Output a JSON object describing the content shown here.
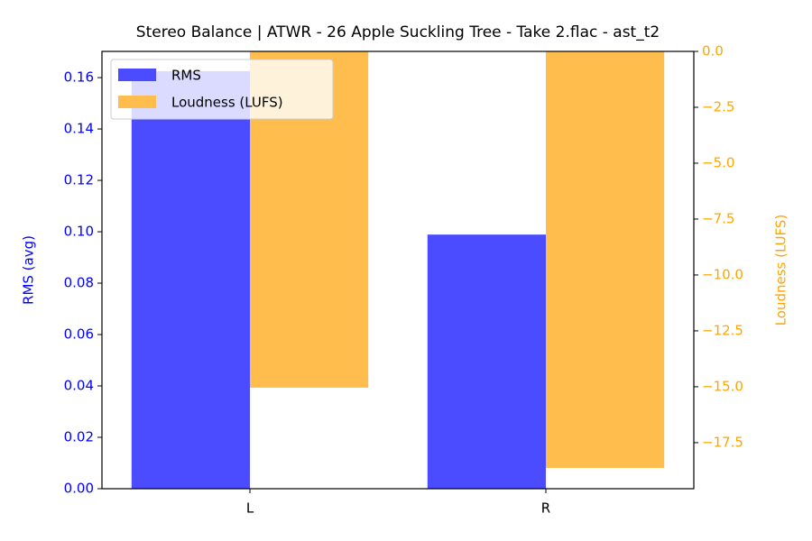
{
  "chart_data": {
    "type": "bar",
    "title": "Stereo Balance | ATWR - 26 Apple Suckling Tree - Take 2.flac - ast_t2",
    "categories": [
      "L",
      "R"
    ],
    "ylabel": "RMS (avg)",
    "y2label": "Loudness (LUFS)",
    "series": [
      {
        "name": "RMS",
        "color": "#4b4bff",
        "values": [
          0.1625,
          0.0989
        ]
      },
      {
        "name": "Loudness (LUFS)",
        "color": "#ffbd4d",
        "axis": "y2",
        "values": [
          -15.04,
          -18.63
        ]
      }
    ],
    "ylim": [
      0,
      0.1702
    ],
    "yticks": [
      {
        "value": 0,
        "label": "0.00"
      },
      {
        "value": 0.02,
        "label": "0.02"
      },
      {
        "value": 0.04,
        "label": "0.04"
      },
      {
        "value": 0.06,
        "label": "0.06"
      },
      {
        "value": 0.08,
        "label": "0.08"
      },
      {
        "value": 0.1,
        "label": "0.10"
      },
      {
        "value": 0.12,
        "label": "0.12"
      },
      {
        "value": 0.14,
        "label": "0.14"
      },
      {
        "value": 0.16,
        "label": "0.16"
      }
    ],
    "y2lim": [
      -19.56,
      0
    ],
    "y2ticks": [
      {
        "value": 0,
        "label": "0.0"
      },
      {
        "value": -2.5,
        "label": "−2.5"
      },
      {
        "value": -5,
        "label": "−5.0"
      },
      {
        "value": -7.5,
        "label": "−7.5"
      },
      {
        "value": -10,
        "label": "−10.0"
      },
      {
        "value": -12.5,
        "label": "−12.5"
      },
      {
        "value": -15,
        "label": "−15.0"
      },
      {
        "value": -17.5,
        "label": "−17.5"
      }
    ],
    "ytick_color": "#0000ff",
    "y2tick_color": "#ffa500",
    "legend_loc": "upper left"
  }
}
